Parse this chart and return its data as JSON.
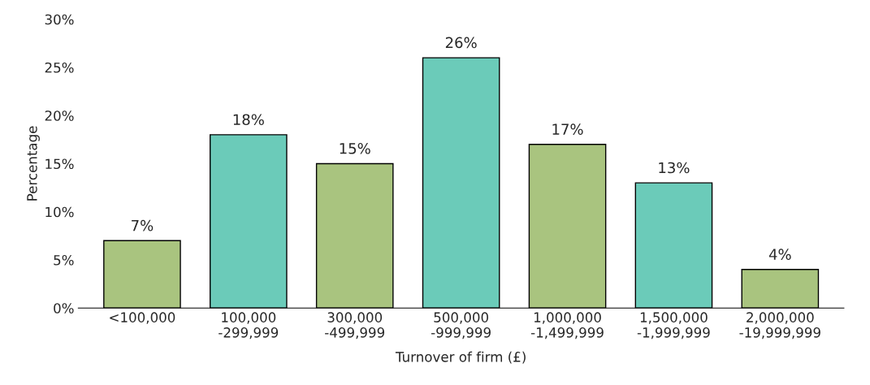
{
  "chart_data": {
    "type": "bar",
    "xlabel": "Turnover of firm (£)",
    "ylabel": "Percentage",
    "categories": [
      "<100,000",
      "100,000\n-299,999",
      "300,000\n-499,999",
      "500,000\n-999,999",
      "1,000,000\n-1,499,999",
      "1,500,000\n-1,999,999",
      "2,000,000\n-19,999,999"
    ],
    "values": [
      7,
      18,
      15,
      26,
      17,
      13,
      4
    ],
    "colors": [
      "#a9c47f",
      "#6bcbb9",
      "#a9c47f",
      "#6bcbb9",
      "#a9c47f",
      "#6bcbb9",
      "#a9c47f"
    ],
    "value_labels": [
      "7%",
      "18%",
      "15%",
      "26%",
      "17%",
      "13%",
      "4%"
    ],
    "ylim": [
      0,
      30
    ],
    "yticks": [
      {
        "value": 0,
        "label": "0%"
      },
      {
        "value": 5,
        "label": "5%"
      },
      {
        "value": 10,
        "label": "10%"
      },
      {
        "value": 15,
        "label": "15%"
      },
      {
        "value": 20,
        "label": "20%"
      },
      {
        "value": 25,
        "label": "25%"
      },
      {
        "value": 30,
        "label": "30%"
      }
    ],
    "grid": false,
    "legend": false
  }
}
